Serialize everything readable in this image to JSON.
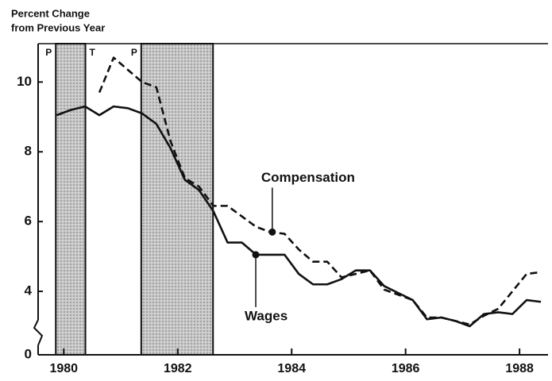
{
  "chart_data": {
    "type": "line",
    "ylabel": [
      "Percent Change",
      "from Previous Year"
    ],
    "x": [
      1979.875,
      1980.125,
      1980.375,
      1980.625,
      1980.875,
      1981.125,
      1981.375,
      1981.625,
      1981.875,
      1982.125,
      1982.375,
      1982.625,
      1982.875,
      1983.125,
      1983.375,
      1983.625,
      1983.875,
      1984.125,
      1984.375,
      1984.625,
      1984.875,
      1985.125,
      1985.375,
      1985.625,
      1985.875,
      1986.125,
      1986.375,
      1986.625,
      1986.875,
      1987.125,
      1987.375,
      1987.625,
      1987.875,
      1988.125,
      1988.375
    ],
    "series": [
      {
        "name": "Compensation",
        "color": "#111111",
        "dash": true,
        "values": [
          null,
          null,
          null,
          9.7,
          10.7,
          10.35,
          10.0,
          9.85,
          8.3,
          7.25,
          7.0,
          6.45,
          6.45,
          6.15,
          5.85,
          5.7,
          5.65,
          5.2,
          4.85,
          4.85,
          4.4,
          4.5,
          4.6,
          4.05,
          3.9,
          3.75,
          3.25,
          3.25,
          3.15,
          3.05,
          3.3,
          3.5,
          4.0,
          4.5,
          4.55
        ]
      },
      {
        "name": "Wages",
        "color": "#111111",
        "dash": false,
        "values": [
          9.05,
          9.2,
          9.3,
          9.05,
          9.3,
          9.25,
          9.1,
          8.8,
          8.1,
          7.2,
          6.9,
          6.3,
          5.4,
          5.4,
          5.05,
          5.05,
          5.05,
          4.5,
          4.2,
          4.2,
          4.35,
          4.6,
          4.6,
          4.15,
          3.95,
          3.75,
          3.2,
          3.25,
          3.15,
          3.0,
          3.35,
          3.4,
          3.35,
          3.75,
          3.7
        ]
      }
    ],
    "annotations": [
      {
        "text": "Compensation",
        "x": 1983.66,
        "y": 5.7
      },
      {
        "text": "Wages",
        "x": 1983.37,
        "y": 5.05
      }
    ],
    "shaded_periods": [
      [
        1979.86,
        1980.38
      ],
      [
        1981.36,
        1982.62
      ]
    ],
    "period_labels": [
      {
        "x": 1979.86,
        "label": "P"
      },
      {
        "x": 1980.38,
        "label": "T"
      },
      {
        "x": 1981.36,
        "label": "P"
      }
    ],
    "xlim": [
      1979.55,
      1988.5
    ],
    "xticks": [
      1980,
      1982,
      1984,
      1986,
      1988
    ],
    "ylim": [
      0,
      11.1
    ],
    "y_break": [
      0,
      3
    ],
    "yticks": [
      0,
      4,
      6,
      8,
      10
    ]
  }
}
